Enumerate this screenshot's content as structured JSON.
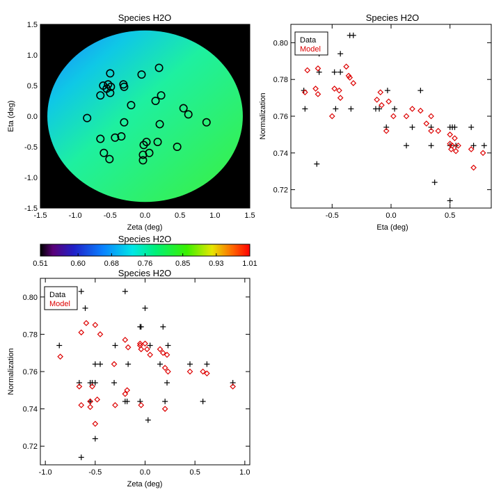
{
  "colorbar": {
    "title": "Species H2O",
    "tick_labels": [
      "0.51",
      "0.60",
      "0.68",
      "0.76",
      "0.85",
      "0.93",
      "1.01"
    ],
    "range": [
      0.51,
      1.01
    ]
  },
  "chart_data": [
    {
      "type": "heatmap",
      "title": "Species H2O",
      "xlabel": "Zeta (deg)",
      "ylabel": "Eta (deg)",
      "xlim": [
        -1.5,
        1.5
      ],
      "ylim": [
        -1.5,
        1.5
      ],
      "xticks": [
        "-1.5",
        "-1.0",
        "-0.5",
        "0.0",
        "0.5",
        "1.0",
        "1.5"
      ],
      "yticks": [
        "-1.5",
        "-1.0",
        "-0.5",
        "0.0",
        "0.5",
        "1.0",
        "1.5"
      ],
      "field_radius": 1.4,
      "background": "#000000",
      "field_value_range": [
        0.72,
        0.8
      ],
      "circles": [
        {
          "x": -0.5,
          "y": 0.7
        },
        {
          "x": -0.6,
          "y": 0.5
        },
        {
          "x": -0.53,
          "y": 0.52
        },
        {
          "x": -0.49,
          "y": 0.48
        },
        {
          "x": -0.55,
          "y": 0.45
        },
        {
          "x": -0.64,
          "y": 0.34
        },
        {
          "x": -0.5,
          "y": 0.38
        },
        {
          "x": -0.31,
          "y": 0.52
        },
        {
          "x": -0.3,
          "y": 0.48
        },
        {
          "x": -0.05,
          "y": 0.68
        },
        {
          "x": 0.2,
          "y": 0.79
        },
        {
          "x": 0.23,
          "y": 0.34
        },
        {
          "x": 0.15,
          "y": 0.25
        },
        {
          "x": -0.2,
          "y": 0.18
        },
        {
          "x": 0.55,
          "y": 0.13
        },
        {
          "x": 0.62,
          "y": 0.03
        },
        {
          "x": 0.88,
          "y": -0.1
        },
        {
          "x": -0.83,
          "y": -0.03
        },
        {
          "x": -0.3,
          "y": -0.1
        },
        {
          "x": 0.21,
          "y": -0.13
        },
        {
          "x": -0.64,
          "y": -0.37
        },
        {
          "x": -0.43,
          "y": -0.35
        },
        {
          "x": -0.34,
          "y": -0.33
        },
        {
          "x": 0.02,
          "y": -0.42
        },
        {
          "x": -0.02,
          "y": -0.47
        },
        {
          "x": 0.18,
          "y": -0.42
        },
        {
          "x": 0.46,
          "y": -0.5
        },
        {
          "x": -0.59,
          "y": -0.6
        },
        {
          "x": -0.03,
          "y": -0.63
        },
        {
          "x": 0.06,
          "y": -0.6
        },
        {
          "x": -0.51,
          "y": -0.7
        },
        {
          "x": -0.03,
          "y": -0.72
        }
      ]
    },
    {
      "type": "scatter",
      "title": "Species H2O",
      "xlabel": "Eta (deg)",
      "ylabel": "Normalization",
      "xlim": [
        -0.85,
        0.85
      ],
      "ylim": [
        0.71,
        0.81
      ],
      "xticks": [
        "-0.5",
        "0.0",
        "0.5"
      ],
      "yticks": [
        "0.72",
        "0.74",
        "0.76",
        "0.78",
        "0.80"
      ],
      "legend": {
        "position": "top-left",
        "entries": [
          "Data",
          "Model"
        ]
      },
      "series": [
        {
          "name": "Data",
          "marker": "plus",
          "color": "#000000",
          "points": [
            [
              -0.74,
              0.774
            ],
            [
              -0.73,
              0.764
            ],
            [
              -0.63,
              0.734
            ],
            [
              -0.61,
              0.794
            ],
            [
              -0.61,
              0.784
            ],
            [
              -0.48,
              0.784
            ],
            [
              -0.47,
              0.764
            ],
            [
              -0.43,
              0.794
            ],
            [
              -0.43,
              0.784
            ],
            [
              -0.35,
              0.804
            ],
            [
              -0.32,
              0.804
            ],
            [
              -0.34,
              0.764
            ],
            [
              -0.13,
              0.764
            ],
            [
              -0.1,
              0.764
            ],
            [
              -0.03,
              0.774
            ],
            [
              -0.04,
              0.754
            ],
            [
              0.03,
              0.764
            ],
            [
              0.13,
              0.744
            ],
            [
              0.18,
              0.754
            ],
            [
              0.25,
              0.774
            ],
            [
              0.34,
              0.754
            ],
            [
              0.34,
              0.744
            ],
            [
              0.37,
              0.724
            ],
            [
              0.5,
              0.714
            ],
            [
              0.5,
              0.754
            ],
            [
              0.5,
              0.744
            ],
            [
              0.52,
              0.754
            ],
            [
              0.54,
              0.754
            ],
            [
              0.55,
              0.744
            ],
            [
              0.68,
              0.754
            ],
            [
              0.7,
              0.744
            ],
            [
              0.79,
              0.744
            ]
          ]
        },
        {
          "name": "Model",
          "marker": "diamond",
          "color": "#dd0000",
          "points": [
            [
              -0.73,
              0.773
            ],
            [
              -0.71,
              0.785
            ],
            [
              -0.64,
              0.775
            ],
            [
              -0.62,
              0.772
            ],
            [
              -0.62,
              0.786
            ],
            [
              -0.5,
              0.76
            ],
            [
              -0.48,
              0.775
            ],
            [
              -0.44,
              0.774
            ],
            [
              -0.43,
              0.77
            ],
            [
              -0.38,
              0.787
            ],
            [
              -0.36,
              0.782
            ],
            [
              -0.35,
              0.781
            ],
            [
              -0.32,
              0.778
            ],
            [
              -0.12,
              0.769
            ],
            [
              -0.09,
              0.773
            ],
            [
              -0.08,
              0.766
            ],
            [
              -0.04,
              0.752
            ],
            [
              -0.02,
              0.768
            ],
            [
              0.02,
              0.76
            ],
            [
              0.13,
              0.76
            ],
            [
              0.18,
              0.764
            ],
            [
              0.25,
              0.763
            ],
            [
              0.3,
              0.756
            ],
            [
              0.34,
              0.76
            ],
            [
              0.34,
              0.752
            ],
            [
              0.4,
              0.752
            ],
            [
              0.5,
              0.75
            ],
            [
              0.5,
              0.745
            ],
            [
              0.51,
              0.742
            ],
            [
              0.52,
              0.744
            ],
            [
              0.54,
              0.748
            ],
            [
              0.55,
              0.741
            ],
            [
              0.57,
              0.744
            ],
            [
              0.68,
              0.742
            ],
            [
              0.7,
              0.732
            ],
            [
              0.78,
              0.74
            ]
          ]
        }
      ]
    },
    {
      "type": "scatter",
      "title": "Species H2O",
      "xlabel": "Zeta (deg)",
      "ylabel": "Normalization",
      "xlim": [
        -1.05,
        1.05
      ],
      "ylim": [
        0.71,
        0.81
      ],
      "xticks": [
        "-1.0",
        "-0.5",
        "0.0",
        "0.5",
        "1.0"
      ],
      "yticks": [
        "0.72",
        "0.74",
        "0.76",
        "0.78",
        "0.80"
      ],
      "legend": {
        "position": "top-left",
        "entries": [
          "Data",
          "Model"
        ]
      },
      "series": [
        {
          "name": "Data",
          "marker": "plus",
          "color": "#000000",
          "points": [
            [
              -0.86,
              0.774
            ],
            [
              -0.66,
              0.754
            ],
            [
              -0.64,
              0.803
            ],
            [
              -0.64,
              0.714
            ],
            [
              -0.6,
              0.794
            ],
            [
              -0.55,
              0.754
            ],
            [
              -0.55,
              0.744
            ],
            [
              -0.53,
              0.754
            ],
            [
              -0.5,
              0.764
            ],
            [
              -0.5,
              0.754
            ],
            [
              -0.5,
              0.724
            ],
            [
              -0.45,
              0.764
            ],
            [
              -0.31,
              0.754
            ],
            [
              -0.3,
              0.774
            ],
            [
              -0.2,
              0.803
            ],
            [
              -0.2,
              0.744
            ],
            [
              -0.18,
              0.744
            ],
            [
              -0.17,
              0.764
            ],
            [
              -0.05,
              0.784
            ],
            [
              -0.04,
              0.784
            ],
            [
              -0.05,
              0.744
            ],
            [
              0.0,
              0.794
            ],
            [
              0.03,
              0.734
            ],
            [
              0.05,
              0.774
            ],
            [
              0.15,
              0.764
            ],
            [
              0.18,
              0.784
            ],
            [
              0.2,
              0.744
            ],
            [
              0.23,
              0.774
            ],
            [
              0.22,
              0.754
            ],
            [
              0.45,
              0.764
            ],
            [
              0.58,
              0.744
            ],
            [
              0.62,
              0.764
            ],
            [
              0.88,
              0.754
            ]
          ]
        },
        {
          "name": "Model",
          "marker": "diamond",
          "color": "#dd0000",
          "points": [
            [
              -0.85,
              0.768
            ],
            [
              -0.66,
              0.752
            ],
            [
              -0.64,
              0.742
            ],
            [
              -0.64,
              0.781
            ],
            [
              -0.59,
              0.786
            ],
            [
              -0.55,
              0.744
            ],
            [
              -0.55,
              0.741
            ],
            [
              -0.53,
              0.752
            ],
            [
              -0.5,
              0.785
            ],
            [
              -0.5,
              0.732
            ],
            [
              -0.48,
              0.745
            ],
            [
              -0.45,
              0.78
            ],
            [
              -0.31,
              0.764
            ],
            [
              -0.3,
              0.742
            ],
            [
              -0.2,
              0.777
            ],
            [
              -0.2,
              0.748
            ],
            [
              -0.18,
              0.75
            ],
            [
              -0.17,
              0.773
            ],
            [
              -0.05,
              0.775
            ],
            [
              -0.05,
              0.774
            ],
            [
              -0.04,
              0.772
            ],
            [
              -0.04,
              0.742
            ],
            [
              0.0,
              0.775
            ],
            [
              0.02,
              0.772
            ],
            [
              0.05,
              0.769
            ],
            [
              0.15,
              0.772
            ],
            [
              0.18,
              0.77
            ],
            [
              0.2,
              0.74
            ],
            [
              0.2,
              0.762
            ],
            [
              0.22,
              0.769
            ],
            [
              0.23,
              0.76
            ],
            [
              0.45,
              0.76
            ],
            [
              0.58,
              0.76
            ],
            [
              0.62,
              0.759
            ],
            [
              0.88,
              0.752
            ]
          ]
        }
      ]
    }
  ]
}
